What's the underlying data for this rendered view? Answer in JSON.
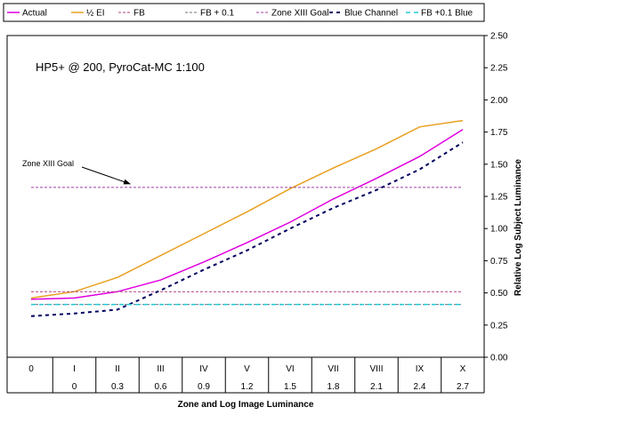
{
  "chart_data": {
    "type": "line",
    "title": "HP5+ @ 200, PyroCat-MC 1:100",
    "xlabel": "Zone and Log Image Luminance",
    "ylabel": "Relative Log Subject Luminance",
    "ylim": [
      0,
      2.5
    ],
    "y_ticks": [
      "0.00",
      "0.25",
      "0.50",
      "0.75",
      "1.00",
      "1.25",
      "1.50",
      "1.75",
      "2.00",
      "2.25",
      "2.50"
    ],
    "zones": [
      "0",
      "I",
      "II",
      "III",
      "IV",
      "V",
      "VI",
      "VII",
      "VIII",
      "IX",
      "X"
    ],
    "log_image_luminance": [
      "",
      "0",
      "0.3",
      "0.6",
      "0.9",
      "1.2",
      "1.5",
      "1.8",
      "2.1",
      "2.4",
      "2.7"
    ],
    "legend_position": "top",
    "grid": false,
    "x": [
      0,
      1,
      2,
      3,
      4,
      5,
      6,
      7,
      8,
      9,
      10
    ],
    "series": [
      {
        "name": "Actual",
        "color": "#e000e0",
        "dash": "solid",
        "values": [
          0.45,
          0.46,
          0.51,
          0.6,
          0.74,
          0.89,
          1.05,
          1.23,
          1.39,
          1.56,
          1.77
        ]
      },
      {
        "name": "½ EI",
        "color": "#e8a020",
        "dash": "solid",
        "values": [
          0.46,
          0.51,
          0.62,
          0.79,
          0.96,
          1.13,
          1.31,
          1.47,
          1.62,
          1.79,
          1.84
        ]
      },
      {
        "name": "FB",
        "color": "#b04080",
        "dash": "fine",
        "values": [
          0.51,
          0.51,
          0.51,
          0.51,
          0.51,
          0.51,
          0.51,
          0.51,
          0.51,
          0.51,
          0.51
        ]
      },
      {
        "name": "FB + 0.1",
        "color": "#707070",
        "dash": "fine",
        "values": [
          0.41,
          0.41,
          0.41,
          0.41,
          0.41,
          0.41,
          0.41,
          0.41,
          0.41,
          0.41,
          0.41
        ]
      },
      {
        "name": "Zone XIII Goal",
        "color": "#a040a0",
        "dash": "fine",
        "values": [
          1.32,
          1.32,
          1.32,
          1.32,
          1.32,
          1.32,
          1.32,
          1.32,
          1.32,
          1.32,
          1.32
        ]
      },
      {
        "name": "Blue Channel",
        "color": "#000060",
        "dash": "bold",
        "values": [
          0.32,
          0.34,
          0.37,
          0.52,
          0.68,
          0.83,
          1.0,
          1.16,
          1.3,
          1.46,
          1.67
        ]
      },
      {
        "name": "FB +0.1 Blue",
        "color": "#20c8d8",
        "dash": "medium",
        "values": [
          0.41,
          0.41,
          0.41,
          0.41,
          0.41,
          0.41,
          0.41,
          0.41,
          0.41,
          0.41,
          0.41
        ]
      }
    ],
    "annotations": [
      {
        "text": "Zone XIII Goal",
        "points_to_series": "Zone XIII Goal"
      }
    ]
  }
}
